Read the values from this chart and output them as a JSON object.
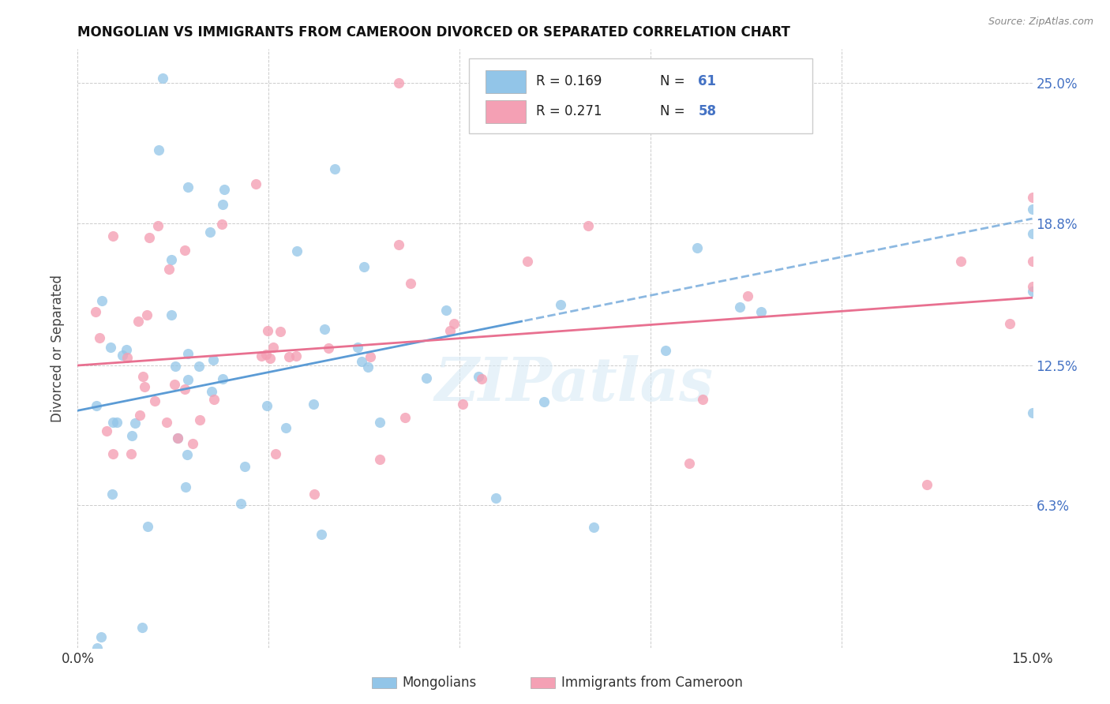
{
  "title": "MONGOLIAN VS IMMIGRANTS FROM CAMEROON DIVORCED OR SEPARATED CORRELATION CHART",
  "source": "Source: ZipAtlas.com",
  "ylabel_label": "Divorced or Separated",
  "xlim": [
    0.0,
    0.15
  ],
  "ylim": [
    0.0,
    0.265
  ],
  "color_mongolian": "#92C5E8",
  "color_cameroon": "#F4A0B4",
  "color_blue_text": "#4472C4",
  "color_pink_line": "#E87090",
  "color_blue_line": "#5B9BD5",
  "watermark": "ZIPatlas",
  "mon_R": 0.169,
  "mon_N": 61,
  "cam_R": 0.271,
  "cam_N": 58,
  "ytick_vals": [
    0.063,
    0.125,
    0.188,
    0.25
  ],
  "ytick_labels": [
    "6.3%",
    "12.5%",
    "18.8%",
    "25.0%"
  ]
}
